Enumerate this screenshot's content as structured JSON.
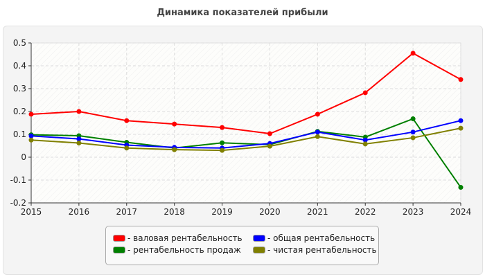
{
  "chart_data": {
    "type": "line",
    "title": "Динамика показателей прибыли",
    "x": [
      2015,
      2016,
      2017,
      2018,
      2019,
      2020,
      2021,
      2022,
      2023,
      2024
    ],
    "ylim": [
      -0.2,
      0.5
    ],
    "yticks": [
      -0.2,
      -0.1,
      0,
      0.1,
      0.2,
      0.3,
      0.4,
      0.5
    ],
    "ytick_labels": [
      "-0.2",
      "-0.1",
      "0",
      "0.1",
      "0.2",
      "0.3",
      "0.4",
      "0.5"
    ],
    "grid": true,
    "legend_placement": "bottom",
    "series": [
      {
        "name": "валовая рентабельность",
        "color": "#ff0000",
        "values": [
          0.188,
          0.2,
          0.16,
          0.145,
          0.13,
          0.103,
          0.188,
          0.282,
          0.455,
          0.34
        ]
      },
      {
        "name": "рентабельность продаж",
        "color": "#008000",
        "values": [
          0.098,
          0.094,
          0.065,
          0.04,
          0.063,
          0.055,
          0.113,
          0.088,
          0.168,
          -0.132
        ]
      },
      {
        "name": "общая рентабельность",
        "color": "#0000ff",
        "values": [
          0.093,
          0.08,
          0.053,
          0.043,
          0.04,
          0.06,
          0.11,
          0.075,
          0.11,
          0.16
        ]
      },
      {
        "name": "чистая рентабельность",
        "color": "#808000",
        "values": [
          0.075,
          0.062,
          0.04,
          0.033,
          0.03,
          0.048,
          0.09,
          0.058,
          0.085,
          0.127
        ]
      }
    ]
  }
}
